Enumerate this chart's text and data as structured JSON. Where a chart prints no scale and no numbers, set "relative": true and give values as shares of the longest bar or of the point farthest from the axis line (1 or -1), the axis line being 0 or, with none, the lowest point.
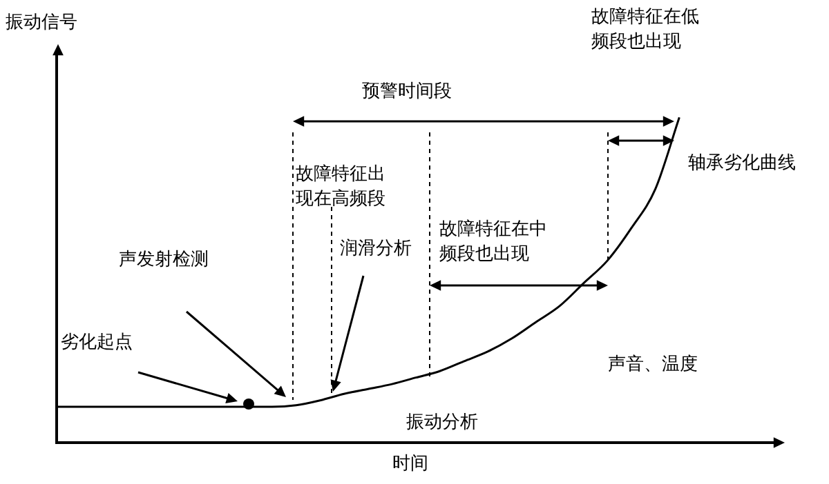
{
  "chart_data": {
    "type": "line",
    "relative": true,
    "xlabel": "时间",
    "ylabel": "振动信号",
    "categories": [
      null,
      null,
      null,
      null,
      null,
      null,
      null,
      null,
      null,
      null,
      null,
      null,
      null,
      null,
      null,
      null,
      null,
      null,
      null,
      null,
      null,
      null,
      null,
      null,
      null,
      null,
      null,
      null,
      null,
      null,
      null
    ],
    "series": [
      {
        "color": "#000000",
        "values": [
          0.11,
          0.11,
          0.11,
          0.11,
          0.11,
          0.11,
          0.11,
          0.11,
          0.11,
          0.11,
          0.115,
          0.13,
          0.15,
          0.165,
          0.18,
          0.2,
          0.22,
          0.25,
          0.28,
          0.32,
          0.37,
          0.42,
          0.49,
          0.56,
          0.66,
          0.78,
          1.0,
          null,
          null,
          null,
          null
        ]
      }
    ],
    "annotations": [
      "预警时间段",
      "故障特征在低频段也出现",
      "轴承劣化曲线",
      "故障特征出现在高频段",
      "声发射检测",
      "润滑分析",
      "故障特征在中频段也出现",
      "劣化起点",
      "声音、温度",
      "振动分析"
    ],
    "marker": "none",
    "line_style": "solid",
    "grid": false,
    "legend": false
  }
}
